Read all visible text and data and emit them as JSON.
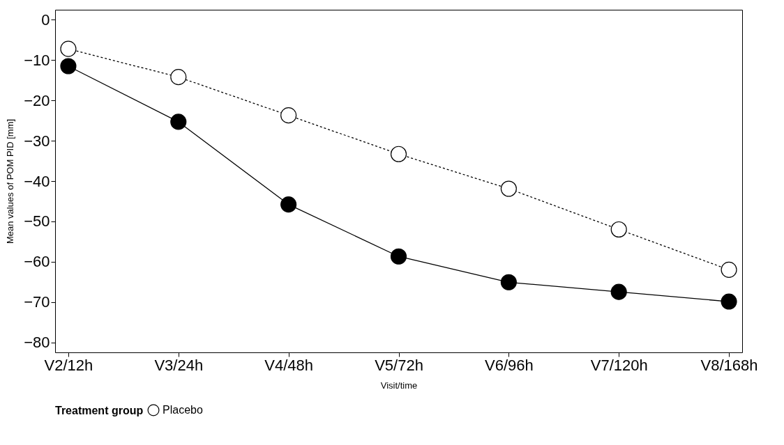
{
  "chart_data": {
    "type": "line",
    "xlabel": "Visit/time",
    "ylabel": "Mean values of POM PID [mm]",
    "legend_title": "Treatment group",
    "categories": [
      "V2/12h",
      "V3/24h",
      "V4/48h",
      "V5/72h",
      "V6/96h",
      "V7/120h",
      "V8/168h"
    ],
    "series": [
      {
        "color": "#000000",
        "line_style": "solid",
        "values": [
          -11.5,
          -25.3,
          -45.8,
          -58.7,
          -65.1,
          -67.5,
          -69.9
        ]
      },
      {
        "name": "Placebo",
        "color": "#000000",
        "line_style": "dotted",
        "values": [
          -7.2,
          -14.2,
          -23.7,
          -33.3,
          -41.9,
          -52.0,
          -62.0
        ]
      }
    ],
    "ylim": [
      -82.5,
      2.5
    ],
    "yticks": [
      0,
      -10,
      -20,
      -30,
      -40,
      -50,
      -60,
      -70,
      -80
    ],
    "grid": false,
    "legend": "bottom",
    "marker": "circle"
  }
}
